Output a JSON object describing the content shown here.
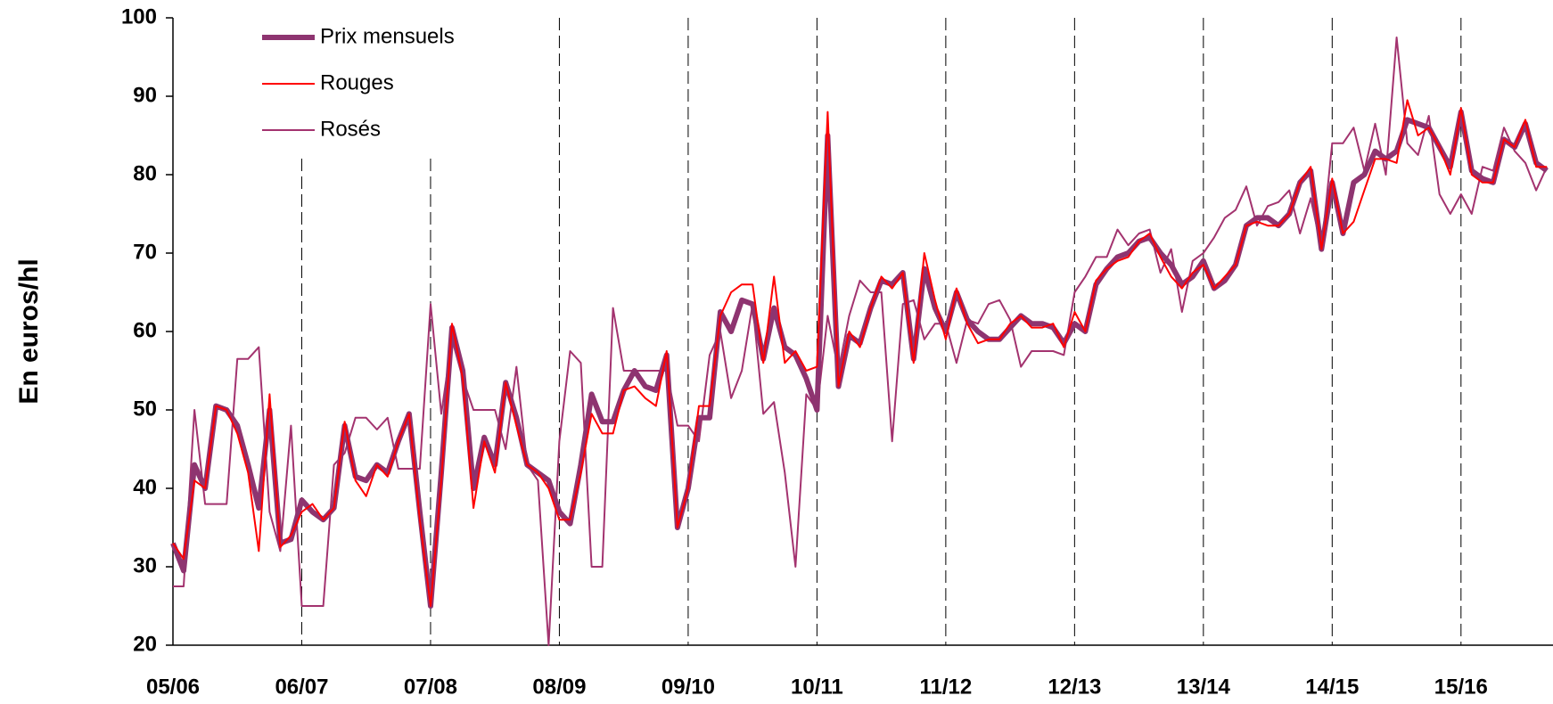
{
  "chart_data": {
    "type": "line",
    "y_label": "En euros/hl",
    "categories": [
      "05/06",
      null,
      null,
      null,
      null,
      null,
      null,
      null,
      null,
      null,
      null,
      null,
      "06/07",
      null,
      null,
      null,
      null,
      null,
      null,
      null,
      null,
      null,
      null,
      null,
      "07/08",
      null,
      null,
      null,
      null,
      null,
      null,
      null,
      null,
      null,
      null,
      null,
      "08/09",
      null,
      null,
      null,
      null,
      null,
      null,
      null,
      null,
      null,
      null,
      null,
      "09/10",
      null,
      null,
      null,
      null,
      null,
      null,
      null,
      null,
      null,
      null,
      null,
      "10/11",
      null,
      null,
      null,
      null,
      null,
      null,
      null,
      null,
      null,
      null,
      null,
      "11/12",
      null,
      null,
      null,
      null,
      null,
      null,
      null,
      null,
      null,
      null,
      null,
      "12/13",
      null,
      null,
      null,
      null,
      null,
      null,
      null,
      null,
      null,
      null,
      null,
      "13/14",
      null,
      null,
      null,
      null,
      null,
      null,
      null,
      null,
      null,
      null,
      null,
      "14/15",
      null,
      null,
      null,
      null,
      null,
      null,
      null,
      null,
      null,
      null,
      null,
      "15/16",
      null,
      null,
      null,
      null,
      null,
      null,
      null,
      null
    ],
    "ylim": [
      20,
      100
    ],
    "yticks": [
      20,
      30,
      40,
      50,
      60,
      70,
      80,
      90,
      100
    ],
    "legend": "upper left",
    "series": [
      {
        "name": "Rosés",
        "color": "#a3336f",
        "width": 2,
        "values": [
          27.5,
          27.5,
          50,
          38,
          38,
          38,
          56.5,
          56.5,
          58,
          37,
          32,
          48,
          25,
          25,
          25,
          43,
          44.5,
          49,
          49,
          47.5,
          49,
          42.5,
          42.5,
          42.5,
          63.5,
          49.5,
          59,
          54,
          50,
          50,
          50,
          45,
          55.5,
          43,
          41,
          20,
          46,
          57.5,
          56,
          30,
          30,
          63,
          55,
          55,
          55,
          55,
          55,
          48,
          48,
          46,
          57,
          60,
          51.5,
          55,
          63.5,
          49.5,
          51,
          42,
          30,
          52,
          50,
          62,
          55,
          62,
          66.5,
          65,
          65,
          46,
          63.5,
          64,
          59,
          61,
          61,
          56,
          61.5,
          61,
          63.5,
          64,
          61.5,
          55.5,
          57.5,
          57.5,
          57.5,
          57,
          65,
          67,
          69.5,
          69.5,
          73,
          71,
          72.5,
          73,
          67.5,
          70.5,
          62.5,
          69,
          70,
          72,
          74.5,
          75.5,
          78.5,
          73.5,
          76,
          76.5,
          78,
          72.5,
          77,
          70.5,
          84,
          84,
          86,
          80.5,
          86.5,
          80,
          97.5,
          84,
          82.5,
          87.5,
          77.5,
          75,
          77.5,
          75,
          81,
          80.5,
          86,
          83,
          81.5,
          78,
          81
        ]
      },
      {
        "name": "Prix mensuels",
        "color": "#8e3470",
        "width": 6,
        "values": [
          33,
          29.5,
          43,
          40,
          50.5,
          50,
          48,
          43,
          37.5,
          50,
          33,
          33.5,
          38.5,
          37,
          36,
          37.5,
          48,
          41.5,
          41,
          43,
          42,
          46,
          49.5,
          37,
          25,
          42,
          60.5,
          55,
          40,
          46.5,
          43,
          53.5,
          49,
          43,
          42,
          41,
          37,
          35.5,
          43,
          52,
          48.5,
          48.5,
          52.5,
          55,
          53,
          52.5,
          57,
          35,
          40,
          49,
          49,
          62.5,
          60,
          64,
          63.5,
          56.5,
          63,
          58,
          57,
          54,
          50,
          85,
          53,
          59.5,
          58.5,
          63,
          66.5,
          66,
          67.5,
          56.5,
          68,
          63,
          60,
          65,
          61.5,
          60,
          59,
          59,
          60.5,
          62,
          61,
          61,
          60.5,
          58.5,
          61,
          60,
          66,
          68,
          69.5,
          70,
          71.5,
          72,
          70,
          68.5,
          66,
          67,
          69,
          65.5,
          66.5,
          68.5,
          73.5,
          74.5,
          74.5,
          73.5,
          75,
          79,
          80.5,
          70.5,
          79,
          72.5,
          79,
          80,
          83,
          82,
          83,
          87,
          86.5,
          86,
          83.5,
          81,
          88,
          80.5,
          79.5,
          79,
          84.5,
          83.5,
          86.5,
          81.5,
          80.5
        ]
      },
      {
        "name": "Rouges",
        "color": "#ff0000",
        "width": 2,
        "values": [
          33,
          31,
          41,
          40,
          50.5,
          50,
          47,
          42,
          32,
          52,
          32.5,
          34,
          37,
          38,
          36,
          37.5,
          48.5,
          41,
          39,
          43,
          41.5,
          46,
          49.5,
          36,
          25,
          41,
          61,
          54,
          37.5,
          46,
          42,
          53.5,
          48,
          43,
          42,
          40,
          36,
          36,
          42,
          49.5,
          47,
          47,
          52.5,
          53,
          51.5,
          50.5,
          57.5,
          35,
          40,
          50.5,
          50.5,
          62,
          65,
          66,
          66,
          56,
          67,
          56,
          57.5,
          55,
          55.5,
          88,
          53,
          60,
          58,
          63,
          67,
          65.5,
          67.5,
          56,
          70,
          64,
          59,
          65.5,
          61,
          58.5,
          59,
          59,
          61,
          62,
          60.5,
          60.5,
          61,
          58,
          62.5,
          60,
          66.5,
          68,
          69,
          69.5,
          71.5,
          72.5,
          69.5,
          67,
          65.5,
          67.5,
          68.5,
          65.5,
          67,
          68.5,
          73.5,
          74,
          73.5,
          73.5,
          75,
          79,
          81,
          70.5,
          79.5,
          72.5,
          74,
          78,
          82,
          82,
          81.5,
          89.5,
          85,
          86,
          83.5,
          80,
          88.5,
          80,
          79,
          79,
          84.5,
          83.5,
          87,
          81,
          81
        ]
      }
    ]
  }
}
